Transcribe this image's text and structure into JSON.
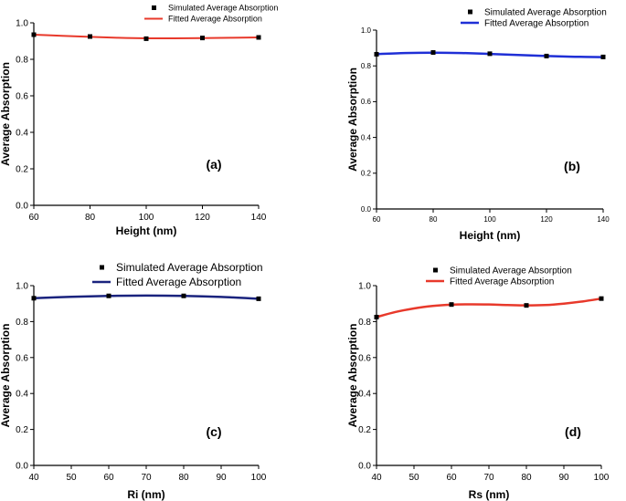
{
  "chart_data": [
    {
      "type": "line",
      "panel_label": "(a)",
      "xlabel": "Height (nm)",
      "ylabel": "Average Absorption",
      "xlim": [
        60,
        140
      ],
      "ylim": [
        0.0,
        1.0
      ],
      "xticks": [
        60,
        80,
        100,
        120,
        140
      ],
      "yticks": [
        0.0,
        0.2,
        0.4,
        0.6,
        0.8,
        1.0
      ],
      "x_tick_labels": [
        "60",
        "80",
        "100",
        "120",
        "140"
      ],
      "y_tick_labels": [
        "0.0",
        "0.2",
        "0.4",
        "0.6",
        "0.8",
        "1.0"
      ],
      "legend_position": "top-right",
      "series": [
        {
          "name": "Simulated Average Absorption",
          "kind": "scatter",
          "color": "#000000",
          "x": [
            60,
            80,
            100,
            120,
            140
          ],
          "values": [
            0.935,
            0.925,
            0.913,
            0.917,
            0.92
          ]
        },
        {
          "name": "Fitted Average Absorption",
          "kind": "line",
          "color": "#e8392b",
          "x": [
            60,
            70,
            80,
            90,
            100,
            110,
            120,
            130,
            140
          ],
          "values": [
            0.935,
            0.929,
            0.923,
            0.918,
            0.915,
            0.915,
            0.916,
            0.918,
            0.92
          ]
        }
      ]
    },
    {
      "type": "line",
      "panel_label": "(b)",
      "xlabel": "Height (nm)",
      "ylabel": "Average Absorption",
      "xlim": [
        60,
        140
      ],
      "ylim": [
        0.0,
        1.0
      ],
      "xticks": [
        60,
        80,
        100,
        120,
        140
      ],
      "yticks": [
        0.0,
        0.2,
        0.4,
        0.6,
        0.8,
        1.0
      ],
      "x_tick_labels": [
        "60",
        "80",
        "100",
        "120",
        "140"
      ],
      "y_tick_labels": [
        "0.0",
        "0.2",
        "0.4",
        "0.6",
        "0.8",
        "1.0"
      ],
      "legend_position": "top-right",
      "series": [
        {
          "name": "Simulated Average Absorption",
          "kind": "scatter",
          "color": "#000000",
          "x": [
            60,
            80,
            100,
            120,
            140
          ],
          "values": [
            0.865,
            0.875,
            0.868,
            0.855,
            0.85
          ]
        },
        {
          "name": "Fitted Average Absorption",
          "kind": "line",
          "color": "#1f2fd6",
          "x": [
            60,
            70,
            80,
            90,
            100,
            110,
            120,
            130,
            140
          ],
          "values": [
            0.866,
            0.872,
            0.874,
            0.872,
            0.867,
            0.861,
            0.855,
            0.851,
            0.849
          ]
        }
      ]
    },
    {
      "type": "line",
      "panel_label": "(c)",
      "xlabel": "Ri (nm)",
      "ylabel": "Average Absorption",
      "xlim": [
        40,
        100
      ],
      "ylim": [
        0.0,
        1.0
      ],
      "xticks": [
        40,
        50,
        60,
        70,
        80,
        90,
        100
      ],
      "yticks": [
        0.0,
        0.2,
        0.4,
        0.6,
        0.8,
        1.0
      ],
      "x_tick_labels": [
        "40",
        "50",
        "60",
        "70",
        "80",
        "90",
        "100"
      ],
      "y_tick_labels": [
        "0.0",
        "0.2",
        "0.4",
        "0.6",
        "0.8",
        "1.0"
      ],
      "legend_position": "top-right",
      "series": [
        {
          "name": "Simulated Average Absorption",
          "kind": "scatter",
          "color": "#000000",
          "x": [
            40,
            60,
            80,
            100
          ],
          "values": [
            0.93,
            0.943,
            0.943,
            0.927
          ]
        },
        {
          "name": "Fitted Average Absorption",
          "kind": "line",
          "color": "#1a237e",
          "x": [
            40,
            50,
            60,
            70,
            80,
            90,
            100
          ],
          "values": [
            0.93,
            0.938,
            0.943,
            0.945,
            0.943,
            0.937,
            0.927
          ]
        }
      ]
    },
    {
      "type": "line",
      "panel_label": "(d)",
      "xlabel": "Rs (nm)",
      "ylabel": "Average Absorption",
      "xlim": [
        40,
        100
      ],
      "ylim": [
        0.0,
        1.0
      ],
      "xticks": [
        40,
        50,
        60,
        70,
        80,
        90,
        100
      ],
      "yticks": [
        0.0,
        0.2,
        0.4,
        0.6,
        0.8,
        1.0
      ],
      "x_tick_labels": [
        "40",
        "50",
        "60",
        "70",
        "80",
        "90",
        "100"
      ],
      "y_tick_labels": [
        "0.0",
        "0.2",
        "0.4",
        "0.6",
        "0.8",
        "1.0"
      ],
      "legend_position": "top-right",
      "series": [
        {
          "name": "Simulated Average Absorption",
          "kind": "scatter",
          "color": "#000000",
          "x": [
            40,
            60,
            80,
            100
          ],
          "values": [
            0.825,
            0.895,
            0.89,
            0.928
          ]
        },
        {
          "name": "Fitted Average Absorption",
          "kind": "line",
          "color": "#e8392b",
          "x": [
            40,
            45,
            50,
            55,
            60,
            65,
            70,
            75,
            80,
            85,
            90,
            95,
            100
          ],
          "values": [
            0.825,
            0.853,
            0.873,
            0.887,
            0.894,
            0.896,
            0.895,
            0.892,
            0.89,
            0.892,
            0.9,
            0.912,
            0.928
          ]
        }
      ]
    }
  ]
}
